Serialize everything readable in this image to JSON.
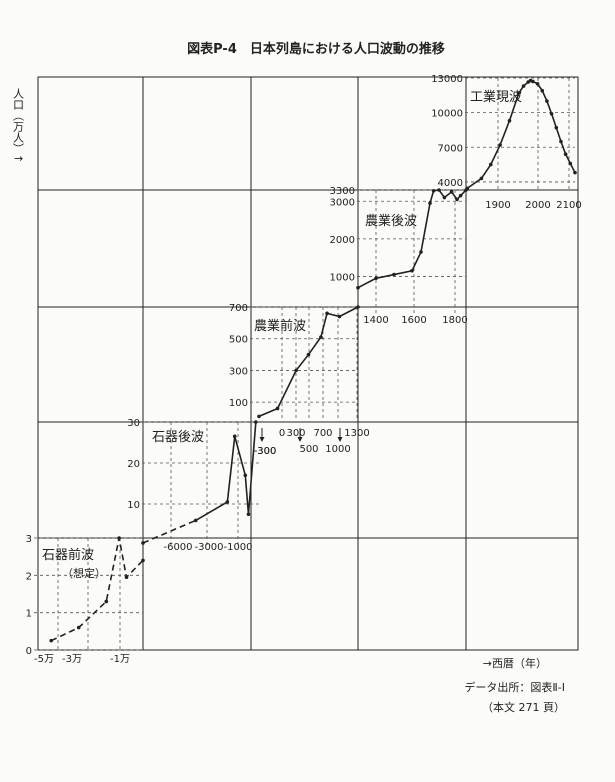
{
  "title": "図表P-4　日本列島における人口波動の推移",
  "y_axis_label": "人口（万人）↑",
  "x_axis_label": "→西暦（年）",
  "source_line1": "データ出所：図表Ⅱ-Ⅰ",
  "source_line2": "（本文 271 頁）",
  "colors": {
    "ink": "#222222",
    "paper": "#fbfbf8"
  },
  "chart_data": {
    "type": "line",
    "description_style": "piecewise-scaled staircase of five population waves",
    "panels": [
      {
        "key": "stone_age_early",
        "name": "石器前波",
        "sublabel": "（想定）",
        "y_ticks": [
          0,
          1,
          2,
          3
        ],
        "ylim": [
          0,
          3
        ],
        "x_ticks": [
          "-5万",
          "-3万",
          "-1万"
        ],
        "xlim": [
          -55000,
          0
        ],
        "points": [
          [
            -50000,
            0.25
          ],
          [
            -35000,
            0.6
          ],
          [
            -20000,
            1.3
          ],
          [
            -13000,
            3.0
          ],
          [
            -9000,
            1.95
          ],
          [
            0,
            2.4
          ]
        ],
        "dashed": true
      },
      {
        "key": "stone_age_late",
        "name": "石器後波",
        "y_ticks": [
          10,
          20,
          30
        ],
        "ylim": [
          0,
          30
        ],
        "x_ticks": [
          "-6000",
          "-3000",
          "-1000",
          "-300"
        ],
        "xlim": [
          -11000,
          0
        ],
        "points": [
          [
            -11000,
            0.5
          ],
          [
            -6000,
            6
          ],
          [
            -3000,
            10.5
          ],
          [
            -2300,
            26.5
          ],
          [
            -1300,
            17
          ],
          [
            -1000,
            7.5
          ],
          [
            -300,
            30
          ]
        ],
        "dashed_until": -6000
      },
      {
        "key": "agri_early",
        "name": "農業前波",
        "y_ticks": [
          100,
          300,
          500,
          700
        ],
        "ylim": [
          0,
          700
        ],
        "x_ticks": [
          "-300",
          "0",
          "300",
          "500",
          "700",
          "1000",
          "1300"
        ],
        "xlim": [
          -300,
          1300
        ],
        "points": [
          [
            -300,
            10
          ],
          [
            0,
            60
          ],
          [
            300,
            300
          ],
          [
            500,
            400
          ],
          [
            700,
            510
          ],
          [
            800,
            660
          ],
          [
            1000,
            640
          ],
          [
            1300,
            700
          ]
        ]
      },
      {
        "key": "agri_late",
        "name": "農業後波",
        "y_ticks": [
          1000,
          2000,
          3000,
          3300
        ],
        "ylim": [
          0,
          3300
        ],
        "x_ticks": [
          "1400",
          "1600",
          "1800"
        ],
        "xlim": [
          1300,
          1900
        ],
        "points": [
          [
            1300,
            700
          ],
          [
            1400,
            950
          ],
          [
            1500,
            1050
          ],
          [
            1600,
            1150
          ],
          [
            1650,
            1650
          ],
          [
            1700,
            2950
          ],
          [
            1720,
            3280
          ],
          [
            1750,
            3300
          ],
          [
            1780,
            3100
          ],
          [
            1820,
            3250
          ],
          [
            1850,
            3050
          ],
          [
            1870,
            3150
          ],
          [
            1900,
            3300
          ]
        ]
      },
      {
        "key": "industrial",
        "name": "工業現波",
        "y_ticks": [
          4000,
          7000,
          10000,
          13000
        ],
        "ylim": [
          3300,
          13000
        ],
        "x_ticks": [
          "1900",
          "2000",
          "2100"
        ],
        "xlim": [
          1850,
          2100
        ],
        "points": [
          [
            1870,
            3450
          ],
          [
            1900,
            4300
          ],
          [
            1920,
            5500
          ],
          [
            1940,
            7200
          ],
          [
            1960,
            9300
          ],
          [
            1980,
            11700
          ],
          [
            1990,
            12300
          ],
          [
            2000,
            12650
          ],
          [
            2005,
            12780
          ],
          [
            2010,
            12700
          ],
          [
            2020,
            12500
          ],
          [
            2030,
            11900
          ],
          [
            2040,
            11000
          ],
          [
            2050,
            9900
          ],
          [
            2060,
            8700
          ],
          [
            2070,
            7500
          ],
          [
            2080,
            6400
          ],
          [
            2090,
            5600
          ],
          [
            2100,
            4800
          ]
        ]
      }
    ]
  }
}
